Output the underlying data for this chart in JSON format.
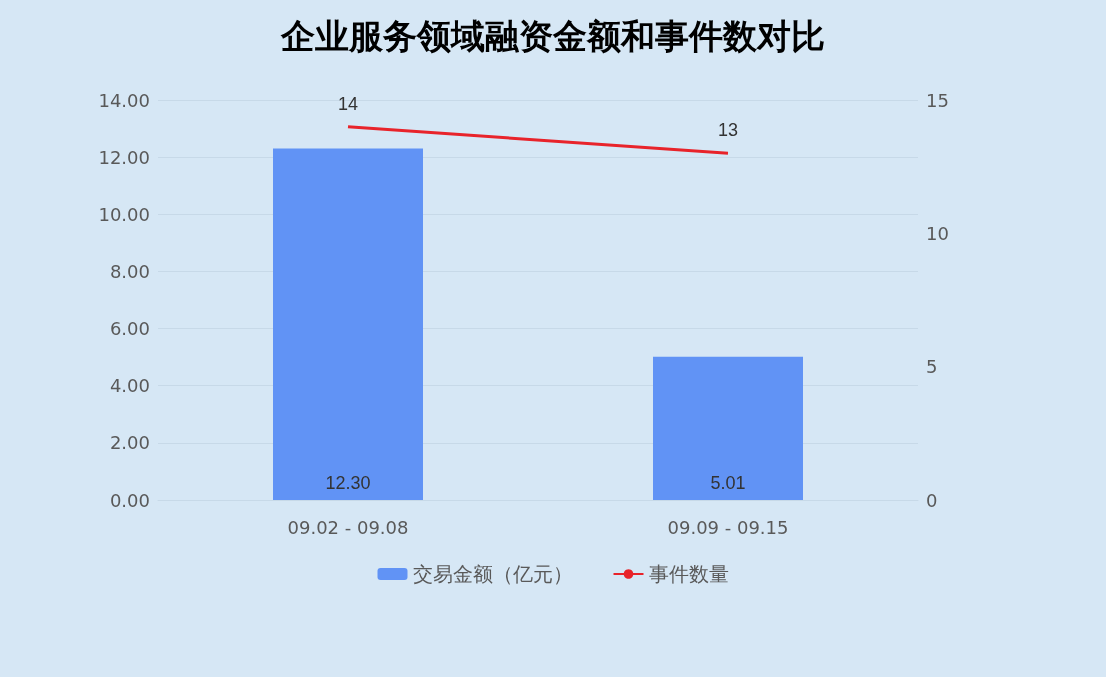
{
  "chart_data": {
    "type": "bar",
    "title": "企业服务领域融资金额和事件数对比",
    "categories": [
      "09.02 - 09.08",
      "09.09 - 09.15"
    ],
    "series": [
      {
        "name": "交易金额（亿元）",
        "color": "#6193f5",
        "values": [
          12.3,
          5.01
        ],
        "value_labels": [
          "12.30",
          "5.01"
        ]
      },
      {
        "name": "事件数量",
        "type": "line",
        "axis": "y2",
        "color": "#e8232a",
        "values": [
          14,
          13
        ],
        "value_labels": [
          "14",
          "13"
        ]
      }
    ],
    "ylim": [
      0,
      14
    ],
    "yticks": [
      {
        "value": 0,
        "label": "0.00"
      },
      {
        "value": 2,
        "label": "2.00"
      },
      {
        "value": 4,
        "label": "4.00"
      },
      {
        "value": 6,
        "label": "6.00"
      },
      {
        "value": 8,
        "label": "8.00"
      },
      {
        "value": 10,
        "label": "10.00"
      },
      {
        "value": 12,
        "label": "12.00"
      },
      {
        "value": 14,
        "label": "14.00"
      }
    ],
    "y2lim": [
      0,
      15
    ],
    "y2ticks": [
      0,
      5,
      10,
      15
    ],
    "grid": "y",
    "legend": "bottom",
    "marker": "none",
    "line_style": "solid"
  }
}
